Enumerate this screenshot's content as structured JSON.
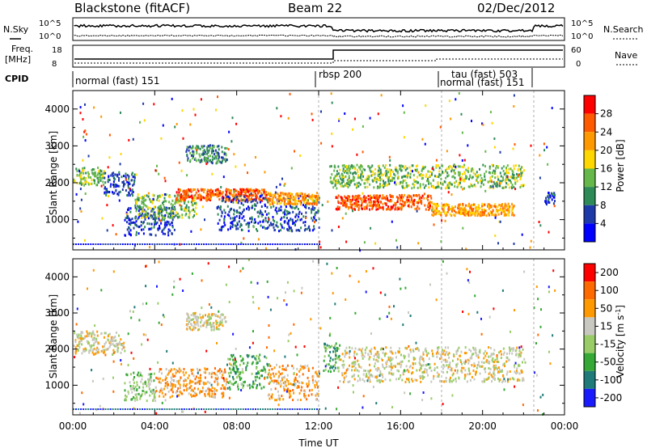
{
  "header": {
    "station": "Blackstone (fitACF)",
    "beam": "Beam 22",
    "date": "02/Dec/2012"
  },
  "noise_panel": {
    "left_label": "N.Sky",
    "right_label": "N.Search",
    "left_ticks": [
      "10^5",
      "10^0"
    ],
    "right_ticks": [
      "10^5",
      "10^0"
    ]
  },
  "freq_panel": {
    "left_label_1": "Freq.",
    "left_label_2": "[MHz]",
    "right_label": "Nave",
    "left_ticks": [
      "18",
      "8"
    ],
    "right_ticks": [
      "60",
      "0"
    ]
  },
  "cpid_panel": {
    "label": "CPID",
    "modes": [
      {
        "name": "normal (fast) 151",
        "start_hr": 0
      },
      {
        "name": "rbsp 200",
        "start_hr": 12.0
      },
      {
        "name": "tau (fast) 503",
        "start_hr": 18.0
      },
      {
        "name": "normal (fast) 151",
        "start_hr": 18.0
      }
    ]
  },
  "colors": {
    "power_scale": [
      "#0000ff",
      "#1e3aa8",
      "#2e8b57",
      "#66b84a",
      "#ffd700",
      "#ff9900",
      "#ff5a00",
      "#ff0000"
    ],
    "velocity_scale": [
      "#1a1aff",
      "#1f7a7a",
      "#35a835",
      "#99cc66",
      "#c8c8c0",
      "#ff9900",
      "#ff6a00",
      "#ff0000"
    ]
  },
  "chart_data": [
    {
      "type": "heatmap",
      "title": "Power",
      "xlabel": "Time UT",
      "ylabel": "Slant Range [km]",
      "colorbar_label": "Power [dB]",
      "colorbar_ticks": [
        "28",
        "24",
        "20",
        "16",
        "12",
        "8",
        "4"
      ],
      "x_ticks": [
        "00:00",
        "04:00",
        "08:00",
        "12:00",
        "16:00",
        "20:00",
        "00:00"
      ],
      "y_ticks": [
        "4000",
        "3000",
        "2000",
        "1000"
      ],
      "xlim_hr": [
        0,
        24
      ],
      "ylim_km": [
        180,
        4500
      ],
      "echo_bands": [
        {
          "start_hr": 0.0,
          "end_hr": 1.5,
          "range_km": 2200,
          "width_km": 300,
          "level": 3
        },
        {
          "start_hr": 1.5,
          "end_hr": 3.0,
          "range_km": 2000,
          "width_km": 400,
          "level": 1
        },
        {
          "start_hr": 2.5,
          "end_hr": 5.0,
          "range_km": 1000,
          "width_km": 500,
          "level": 1
        },
        {
          "start_hr": 3.0,
          "end_hr": 6.0,
          "range_km": 1400,
          "width_km": 400,
          "level": 3
        },
        {
          "start_hr": 5.0,
          "end_hr": 9.5,
          "range_km": 1700,
          "width_km": 200,
          "level": 6
        },
        {
          "start_hr": 5.5,
          "end_hr": 7.5,
          "range_km": 2800,
          "width_km": 300,
          "level": 2
        },
        {
          "start_hr": 7.0,
          "end_hr": 12.0,
          "range_km": 1200,
          "width_km": 600,
          "level": 1
        },
        {
          "start_hr": 9.5,
          "end_hr": 12.0,
          "range_km": 1600,
          "width_km": 200,
          "level": 5
        },
        {
          "start_hr": 12.5,
          "end_hr": 22.0,
          "range_km": 2200,
          "width_km": 400,
          "level": 3
        },
        {
          "start_hr": 12.8,
          "end_hr": 17.5,
          "range_km": 1500,
          "width_km": 250,
          "level": 6
        },
        {
          "start_hr": 17.5,
          "end_hr": 21.5,
          "range_km": 1300,
          "width_km": 200,
          "level": 5
        },
        {
          "start_hr": 23.0,
          "end_hr": 23.5,
          "range_km": 1600,
          "width_km": 200,
          "level": 1
        }
      ]
    },
    {
      "type": "heatmap",
      "title": "Velocity",
      "xlabel": "Time UT",
      "ylabel": "Slant Range [km]",
      "colorbar_label": "Velocity [m s^-1]",
      "colorbar_ticks": [
        "200",
        "100",
        "50",
        "15",
        "-15",
        "-50",
        "-100",
        "-200"
      ],
      "x_ticks": [
        "00:00",
        "04:00",
        "08:00",
        "12:00",
        "16:00",
        "20:00",
        "00:00"
      ],
      "y_ticks": [
        "4000",
        "3000",
        "2000",
        "1000"
      ],
      "xlim_hr": [
        0,
        24
      ],
      "ylim_km": [
        180,
        4500
      ],
      "echo_bands": [
        {
          "start_hr": 0.0,
          "end_hr": 2.5,
          "range_km": 2200,
          "width_km": 400,
          "level": 4
        },
        {
          "start_hr": 2.5,
          "end_hr": 4.0,
          "range_km": 1000,
          "width_km": 500,
          "level": 3
        },
        {
          "start_hr": 4.0,
          "end_hr": 7.5,
          "range_km": 1100,
          "width_km": 500,
          "level": 5
        },
        {
          "start_hr": 5.5,
          "end_hr": 7.5,
          "range_km": 2800,
          "width_km": 300,
          "level": 4
        },
        {
          "start_hr": 7.5,
          "end_hr": 9.5,
          "range_km": 1400,
          "width_km": 600,
          "level": 2
        },
        {
          "start_hr": 9.5,
          "end_hr": 12.0,
          "range_km": 1100,
          "width_km": 600,
          "level": 5
        },
        {
          "start_hr": 12.2,
          "end_hr": 13.0,
          "range_km": 1800,
          "width_km": 500,
          "level": 2
        },
        {
          "start_hr": 13.0,
          "end_hr": 22.0,
          "range_km": 1600,
          "width_km": 600,
          "level": 4
        }
      ]
    }
  ]
}
